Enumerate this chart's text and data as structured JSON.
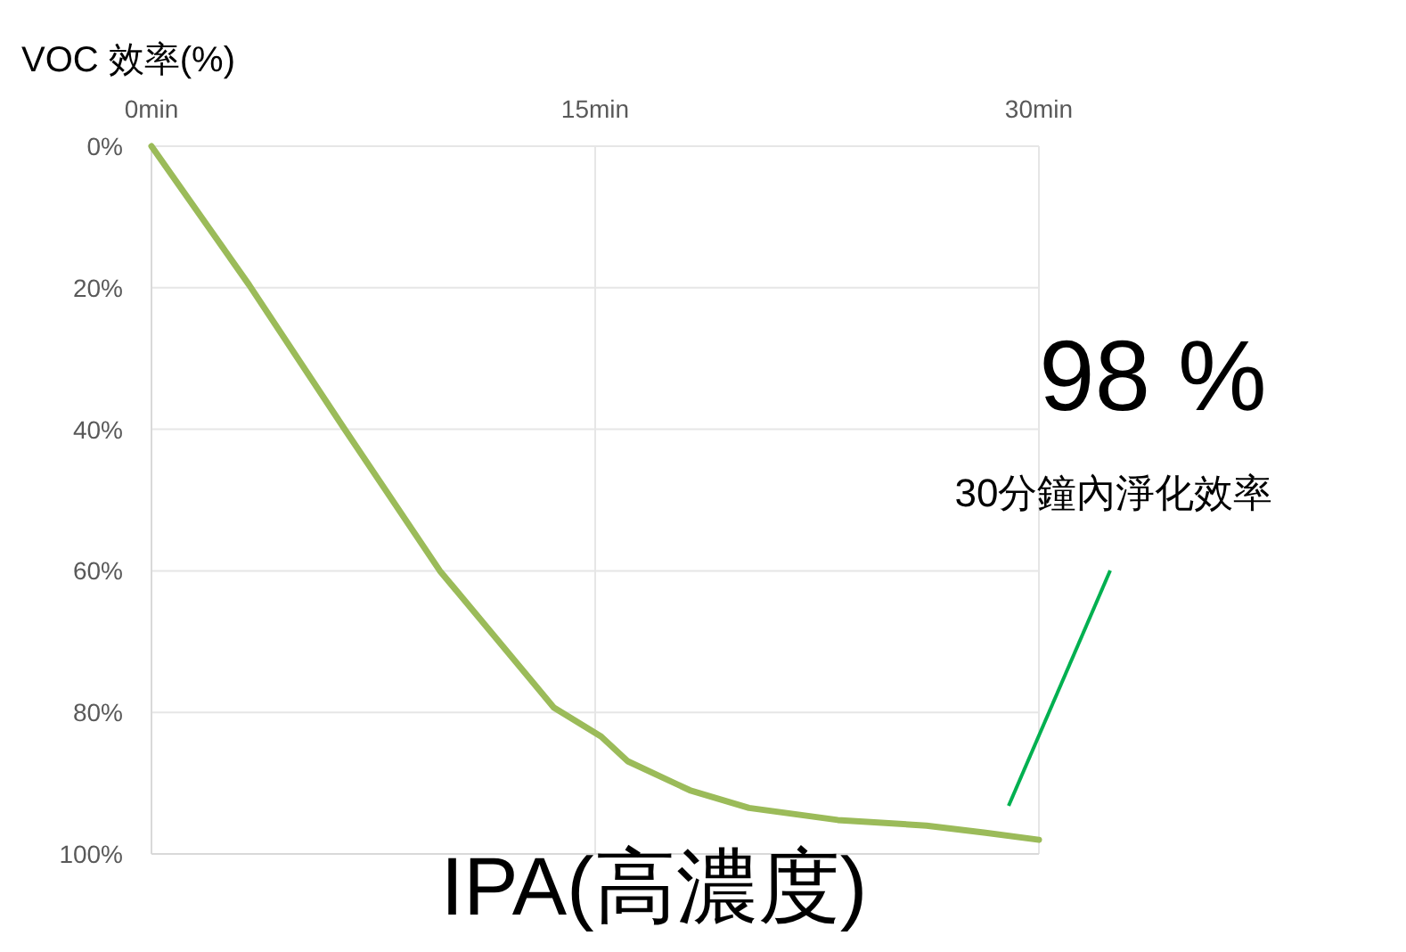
{
  "chart_data": {
    "type": "line",
    "title": "IPA(高濃度)",
    "ylabel": "VOC 效率(%)",
    "x": [
      0,
      3.3,
      6.5,
      9.75,
      13.6,
      15.2,
      16.1,
      18.2,
      20.2,
      23.2,
      26.2,
      28.2,
      30
    ],
    "series": [
      {
        "color": "#9bbb59",
        "values": [
          0,
          19.6,
          39.8,
          60,
          79.3,
          83.4,
          86.9,
          91,
          93.5,
          95.2,
          96,
          97,
          98
        ]
      }
    ],
    "xlim": [
      0,
      30
    ],
    "xticks": [
      {
        "value": 0,
        "label": "0min"
      },
      {
        "value": 15,
        "label": "15min"
      },
      {
        "value": 30,
        "label": "30min"
      }
    ],
    "ylim": [
      100,
      0
    ],
    "yticks": [
      {
        "value": 0,
        "label": "0%"
      },
      {
        "value": 20,
        "label": "20%"
      },
      {
        "value": 40,
        "label": "40%"
      },
      {
        "value": 60,
        "label": "60%"
      },
      {
        "value": 80,
        "label": "80%"
      },
      {
        "value": 100,
        "label": "100%"
      }
    ],
    "grid": true,
    "marker": "none",
    "line_style": "solid",
    "annotations": [
      "98 %",
      "30分鐘內淨化效率"
    ]
  }
}
